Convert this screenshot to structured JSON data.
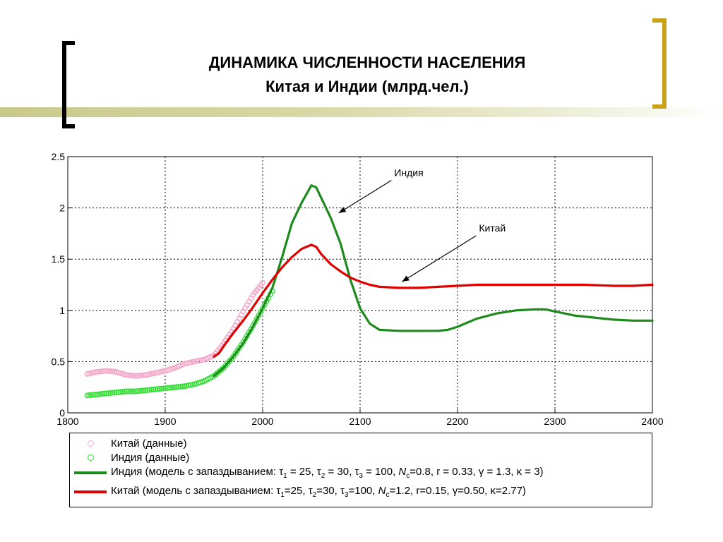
{
  "slide": {
    "title_line1": "ДИНАМИКА ЧИСЛЕННОСТИ НАСЕЛЕНИЯ",
    "title_line2": "Китая и Индии (млрд.чел.)",
    "accent_colors": {
      "left_bracket": "#000000",
      "right_bracket": "#c9a21a",
      "bar": "#c8c98a"
    }
  },
  "chart_data": {
    "type": "line",
    "xlim": [
      1800,
      2400
    ],
    "ylim": [
      0,
      2.5
    ],
    "x_ticks": [
      "1800",
      "1900",
      "2000",
      "2100",
      "2200",
      "2300",
      "2400"
    ],
    "y_ticks": [
      "0",
      "0.5",
      "1",
      "1.5",
      "2",
      "2.5"
    ],
    "grid": true,
    "legend_position": "bottom",
    "annotations": [
      {
        "text": "Индия",
        "xy": [
          2078,
          1.95
        ],
        "text_xy": [
          2135,
          2.31
        ]
      },
      {
        "text": "Китай",
        "xy": [
          2143,
          1.28
        ],
        "text_xy": [
          2222,
          1.77
        ]
      }
    ],
    "series": [
      {
        "name": "Китай (данные)",
        "kind": "scatter",
        "color": "#f4a7c8",
        "x": [
          1820,
          1830,
          1840,
          1850,
          1860,
          1870,
          1880,
          1890,
          1900,
          1910,
          1920,
          1930,
          1940,
          1950,
          1960,
          1970,
          1980,
          1990,
          2000
        ],
        "y": [
          0.38,
          0.4,
          0.41,
          0.4,
          0.37,
          0.36,
          0.37,
          0.39,
          0.41,
          0.44,
          0.48,
          0.5,
          0.52,
          0.56,
          0.68,
          0.82,
          0.99,
          1.15,
          1.27
        ]
      },
      {
        "name": "Индия (данные)",
        "kind": "scatter",
        "color": "#33e033",
        "x": [
          1820,
          1830,
          1840,
          1850,
          1860,
          1870,
          1880,
          1890,
          1900,
          1910,
          1920,
          1930,
          1940,
          1950,
          1960,
          1970,
          1980,
          1990,
          2000,
          2010
        ],
        "y": [
          0.17,
          0.18,
          0.19,
          0.2,
          0.21,
          0.21,
          0.22,
          0.23,
          0.24,
          0.25,
          0.26,
          0.28,
          0.31,
          0.36,
          0.44,
          0.55,
          0.69,
          0.85,
          1.02,
          1.19
        ]
      },
      {
        "name": "Индия (модель с запаздыванием: τ1 = 25, τ2 = 30, τ3 = 100, Nc=0.8, r = 0.33, γ = 1.3, κ = 3)",
        "kind": "line",
        "color": "#1e8a1e",
        "x": [
          1950,
          1960,
          1970,
          1980,
          1990,
          2000,
          2010,
          2020,
          2030,
          2040,
          2050,
          2055,
          2060,
          2070,
          2080,
          2090,
          2100,
          2110,
          2120,
          2140,
          2160,
          2180,
          2190,
          2200,
          2220,
          2240,
          2260,
          2280,
          2290,
          2300,
          2320,
          2340,
          2360,
          2380,
          2400
        ],
        "y": [
          0.36,
          0.44,
          0.55,
          0.68,
          0.84,
          1.02,
          1.22,
          1.52,
          1.85,
          2.05,
          2.22,
          2.2,
          2.1,
          1.9,
          1.65,
          1.3,
          1.02,
          0.87,
          0.81,
          0.8,
          0.8,
          0.8,
          0.81,
          0.84,
          0.92,
          0.97,
          1.0,
          1.01,
          1.01,
          0.99,
          0.95,
          0.93,
          0.91,
          0.9,
          0.9
        ]
      },
      {
        "name": "Китай (модель с запаздыванием: τ1=25, τ2=30, τ3=100, Nc=1.2, r=0.15, γ=0.50, κ=2.77)",
        "kind": "line",
        "color": "#e00000",
        "x": [
          1950,
          1955,
          1960,
          1970,
          1980,
          1990,
          2000,
          2010,
          2020,
          2030,
          2040,
          2050,
          2055,
          2060,
          2070,
          2080,
          2090,
          2100,
          2110,
          2120,
          2140,
          2160,
          2180,
          2200,
          2220,
          2250,
          2280,
          2300,
          2330,
          2360,
          2380,
          2400
        ],
        "y": [
          0.55,
          0.58,
          0.65,
          0.78,
          0.9,
          1.03,
          1.17,
          1.3,
          1.42,
          1.52,
          1.6,
          1.64,
          1.62,
          1.55,
          1.45,
          1.38,
          1.32,
          1.28,
          1.25,
          1.23,
          1.22,
          1.22,
          1.23,
          1.24,
          1.25,
          1.25,
          1.25,
          1.25,
          1.25,
          1.24,
          1.24,
          1.25
        ]
      }
    ]
  },
  "legend": {
    "china_data": "Китай (данные)",
    "india_data": "Индия (данные)",
    "india_model": {
      "prefix": "Индия (модель с запаздыванием: ",
      "t1": "τ",
      "t1_sub": "1",
      "t1_val": " = 25, ",
      "t2": "τ",
      "t2_sub": "2",
      "t2_val": " = 30, ",
      "t3": "τ",
      "t3_sub": "3",
      "t3_val": " = 100,  ",
      "nc": "N",
      "nc_sub": "c",
      "nc_val": "=0.8,  ",
      "rest": "r = 0.33, γ = 1.3, κ = 3)"
    },
    "china_model": {
      "prefix": "Китай (модель с запаздыванием: ",
      "t1": "τ",
      "t1_sub": "1",
      "t1_val": "=25, ",
      "t2": "τ",
      "t2_sub": "2",
      "t2_val": "=30, ",
      "t3": "τ",
      "t3_sub": "3",
      "t3_val": "=100,  ",
      "nc": "N",
      "nc_sub": "c",
      "nc_val": "=1.2,  ",
      "rest": "r=0.15, γ=0.50, κ=2.77)"
    }
  }
}
